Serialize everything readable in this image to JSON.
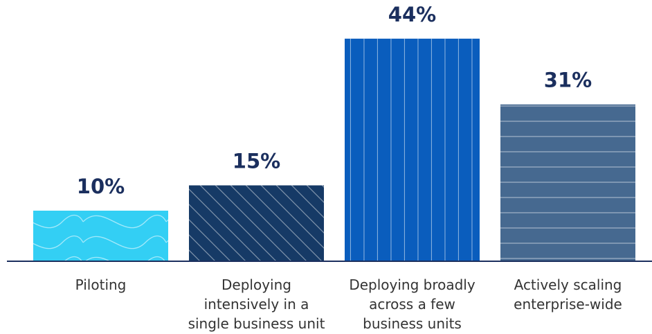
{
  "chart_data": {
    "type": "bar",
    "categories": [
      [
        "Piloting"
      ],
      [
        "Deploying",
        "intensively in a",
        "single business unit"
      ],
      [
        "Deploying broadly",
        "across a few",
        "business units"
      ],
      [
        "Actively scaling",
        "enterprise-wide"
      ]
    ],
    "values": [
      10,
      15,
      44,
      31
    ],
    "value_labels": [
      "10%",
      "15%",
      "44%",
      "31%"
    ],
    "bar_colors": [
      "#33cff4",
      "#163a66",
      "#0a5dbd",
      "#466990"
    ],
    "bar_patterns": [
      "wave",
      "diagonal",
      "vertical",
      "horizontal"
    ],
    "ylim": [
      0,
      50
    ],
    "title": "",
    "xlabel": "",
    "ylabel": "",
    "grid": false,
    "legend": "none"
  },
  "colors": {
    "value_text": "#1b2f5e",
    "category_text": "#333333",
    "axis_line": "#1b2f5e"
  }
}
